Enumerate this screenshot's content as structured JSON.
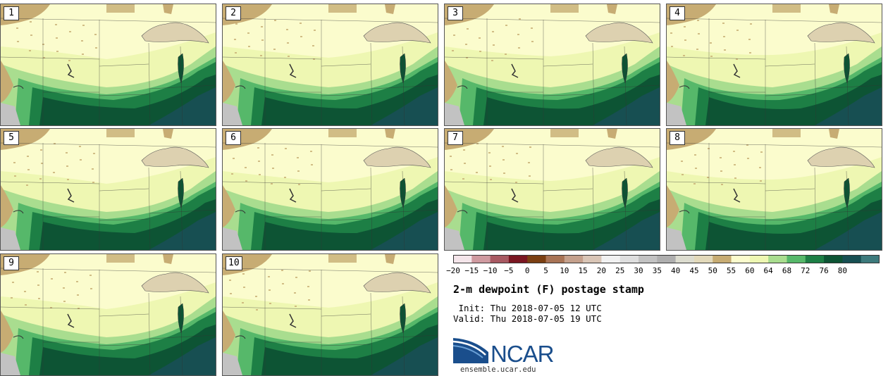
{
  "panels": [
    {
      "label": "1"
    },
    {
      "label": "2"
    },
    {
      "label": "3"
    },
    {
      "label": "4"
    },
    {
      "label": "5"
    },
    {
      "label": "6"
    },
    {
      "label": "7"
    },
    {
      "label": "8"
    },
    {
      "label": "9"
    },
    {
      "label": "10"
    }
  ],
  "colorbar": {
    "ticks": [
      "−20",
      "−15",
      "−10",
      "−5",
      "0",
      "5",
      "10",
      "15",
      "20",
      "25",
      "30",
      "35",
      "40",
      "45",
      "50",
      "55",
      "60",
      "64",
      "68",
      "72",
      "76",
      "80"
    ],
    "colors": [
      "#f4e5ea",
      "#cf9aa0",
      "#a85962",
      "#7a1621",
      "#7b3f12",
      "#a87355",
      "#c4a08c",
      "#d9c5b6",
      "#f1f1f1",
      "#dedede",
      "#c2c2c2",
      "#aeaeae",
      "#dcdccf",
      "#e2d9ba",
      "#c7ac73",
      "#fbfccd",
      "#eef7b2",
      "#a9dd8f",
      "#56b86a",
      "#1d7f45",
      "#0d5434",
      "#174f52",
      "#3d7a7c"
    ]
  },
  "title": "2-m dewpoint (F) postage stamp",
  "init": " Init: Thu 2018-07-05 12 UTC",
  "valid": "Valid: Thu 2018-07-05 19 UTC",
  "logo_text": "NCAR",
  "url": "ensemble.ucar.edu",
  "map_colors": {
    "dry": "#c7ac73",
    "lake": "#ddd1b0",
    "cream": "#fbfccd",
    "lightyellow": "#eef7b2",
    "lightgreen": "#a9dd8f",
    "midgreen": "#56b86a",
    "green": "#1d7f45",
    "darkgreen": "#0d5434",
    "teal": "#174f52",
    "gray": "#c2c2c2"
  }
}
